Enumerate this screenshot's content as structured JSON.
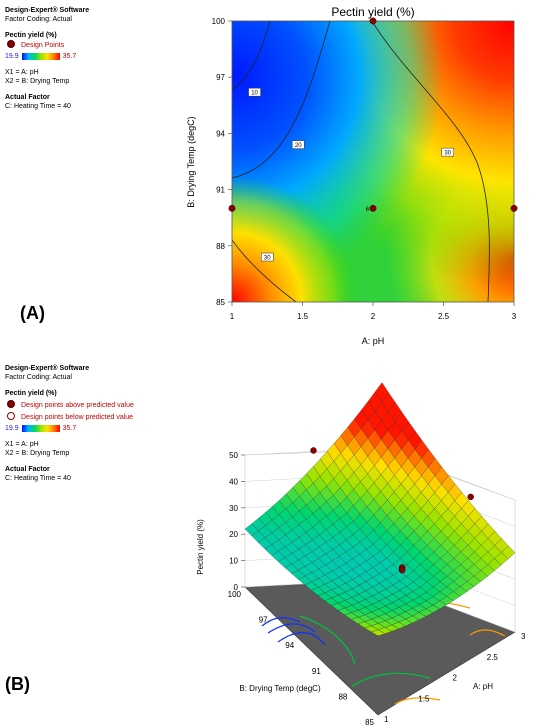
{
  "panelA": {
    "label": "(A)",
    "legend": {
      "software": "Design-Expert® Software",
      "coding": "Factor Coding: Actual",
      "response": "Pectin yield (%)",
      "points": "Design Points",
      "cbar_min": "19.9",
      "cbar_max": "35.7",
      "x1": "X1 = A: pH",
      "x2": "X2 = B: Drying Temp",
      "actual_factor_title": "Actual Factor",
      "actual_factor": "C: Heating Time = 40"
    }
  },
  "panelB": {
    "label": "(B)",
    "legend": {
      "software": "Design-Expert® Software",
      "coding": "Factor Coding: Actual",
      "response": "Pectin yield (%)",
      "above": "Design points above predicted value",
      "below": "Design points below predicted value",
      "cbar_min": "19.9",
      "cbar_max": "35.7",
      "x1": "X1 = A: pH",
      "x2": "X2 = B: Drying Temp",
      "actual_factor_title": "Actual Factor",
      "actual_factor": "C: Heating Time = 40"
    }
  },
  "colors": {
    "point": "#8b0000",
    "low": "#0010ff",
    "high": "#ff0000"
  },
  "chart_data": [
    {
      "type": "heatmap",
      "subtype": "contour",
      "title": "Pectin yield (%)",
      "xlabel": "A: pH",
      "ylabel": "B: Drying Temp (degC)",
      "xlim": [
        1,
        3
      ],
      "ylim": [
        85,
        100
      ],
      "xticks": [
        "1",
        "1.5",
        "2",
        "2.5",
        "3"
      ],
      "yticks": [
        "85",
        "88",
        "91",
        "94",
        "97",
        "100"
      ],
      "contour_labels": [
        "10",
        "20",
        "30",
        "30"
      ],
      "center_point_label": "6",
      "design_points": [
        {
          "x": 1,
          "y": 90
        },
        {
          "x": 2,
          "y": 90
        },
        {
          "x": 3,
          "y": 90
        },
        {
          "x": 2,
          "y": 100
        }
      ]
    },
    {
      "type": "surface",
      "zlabel": "Pectin yield (%)",
      "xlabel": "A: pH",
      "ylabel": "B: Drying Temp (degC)",
      "zticks": [
        "0",
        "10",
        "20",
        "30",
        "40",
        "50"
      ],
      "xticks": [
        "1",
        "1.5",
        "2",
        "2.5",
        "3"
      ],
      "yticks": [
        "85",
        "88",
        "91",
        "94",
        "97",
        "100"
      ],
      "zlim": [
        0,
        50
      ],
      "design_points": [
        {
          "x": 2,
          "y": 100,
          "z": 36
        },
        {
          "x": 3,
          "y": 90,
          "z": 35
        },
        {
          "x": 2,
          "y": 90,
          "z": 24
        },
        {
          "x": 2,
          "y": 90,
          "z": 23
        }
      ]
    }
  ]
}
